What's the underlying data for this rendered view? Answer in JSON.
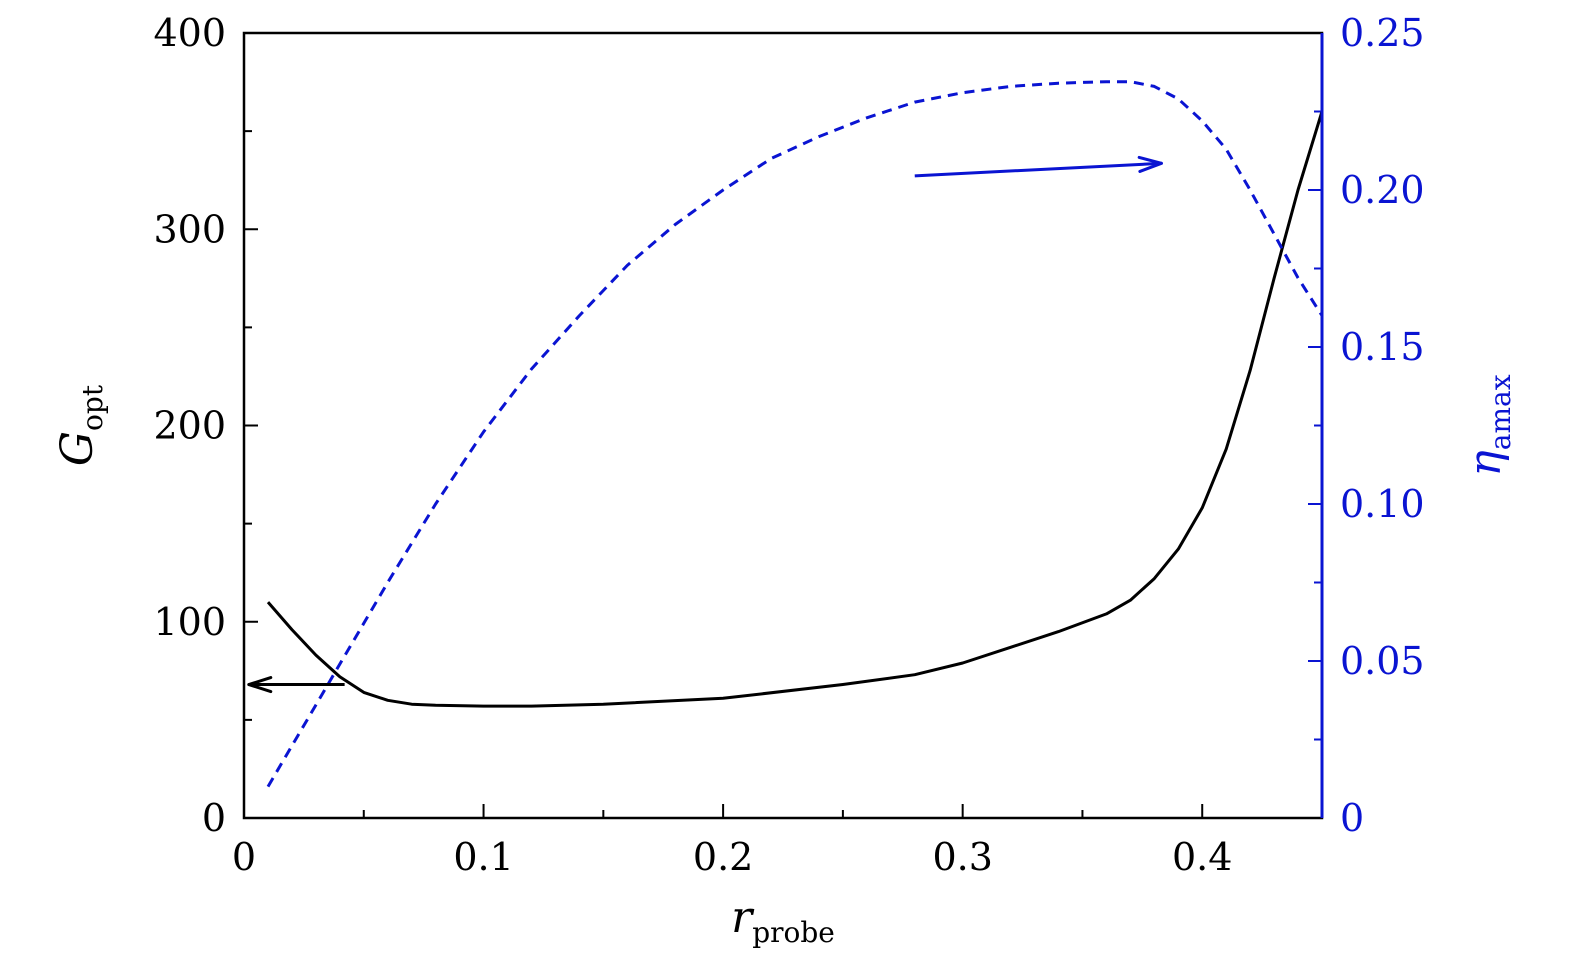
{
  "chart_data": {
    "type": "line",
    "title": "",
    "xlabel": {
      "main": "r",
      "sub": "probe"
    },
    "ylabel_left": {
      "main": "G",
      "sub": "opt"
    },
    "ylabel_right": {
      "main": "η",
      "sub": "amax"
    },
    "xlim": [
      0,
      0.45
    ],
    "ylim_left": [
      0,
      400
    ],
    "ylim_right": [
      0,
      0.25
    ],
    "x_ticks": [
      {
        "value": 0,
        "label": "0"
      },
      {
        "value": 0.1,
        "label": "0.1"
      },
      {
        "value": 0.2,
        "label": "0.2"
      },
      {
        "value": 0.3,
        "label": "0.3"
      },
      {
        "value": 0.4,
        "label": "0.4"
      }
    ],
    "y_left_ticks": [
      {
        "value": 0,
        "label": "0"
      },
      {
        "value": 100,
        "label": "100"
      },
      {
        "value": 200,
        "label": "200"
      },
      {
        "value": 300,
        "label": "300"
      },
      {
        "value": 400,
        "label": "400"
      }
    ],
    "y_right_ticks": [
      {
        "value": 0,
        "label": "0"
      },
      {
        "value": 0.05,
        "label": "0.05"
      },
      {
        "value": 0.1,
        "label": "0.10"
      },
      {
        "value": 0.15,
        "label": "0.15"
      },
      {
        "value": 0.2,
        "label": "0.20"
      },
      {
        "value": 0.25,
        "label": "0.25"
      }
    ],
    "grid": false,
    "colors": {
      "axis": "#000000",
      "left_series": "#000000",
      "right_series": "#0a14d2"
    },
    "series": [
      {
        "axis": "left",
        "style": "solid",
        "points": [
          [
            0.01,
            110
          ],
          [
            0.02,
            96
          ],
          [
            0.03,
            83
          ],
          [
            0.04,
            72
          ],
          [
            0.05,
            64
          ],
          [
            0.06,
            60
          ],
          [
            0.07,
            58
          ],
          [
            0.08,
            57.5
          ],
          [
            0.1,
            57
          ],
          [
            0.12,
            57
          ],
          [
            0.15,
            58
          ],
          [
            0.2,
            61
          ],
          [
            0.25,
            68
          ],
          [
            0.28,
            73
          ],
          [
            0.3,
            79
          ],
          [
            0.32,
            87
          ],
          [
            0.34,
            95
          ],
          [
            0.36,
            104
          ],
          [
            0.37,
            111
          ],
          [
            0.38,
            122
          ],
          [
            0.39,
            137
          ],
          [
            0.4,
            158
          ],
          [
            0.41,
            188
          ],
          [
            0.42,
            228
          ],
          [
            0.43,
            275
          ],
          [
            0.44,
            320
          ],
          [
            0.45,
            360
          ]
        ]
      },
      {
        "axis": "right",
        "style": "dashed",
        "points": [
          [
            0.01,
            0.01
          ],
          [
            0.02,
            0.023
          ],
          [
            0.03,
            0.036
          ],
          [
            0.04,
            0.049
          ],
          [
            0.05,
            0.062
          ],
          [
            0.06,
            0.075
          ],
          [
            0.08,
            0.1
          ],
          [
            0.1,
            0.123
          ],
          [
            0.12,
            0.143
          ],
          [
            0.14,
            0.16
          ],
          [
            0.16,
            0.176
          ],
          [
            0.18,
            0.189
          ],
          [
            0.2,
            0.2
          ],
          [
            0.22,
            0.21
          ],
          [
            0.24,
            0.217
          ],
          [
            0.26,
            0.223
          ],
          [
            0.28,
            0.228
          ],
          [
            0.3,
            0.231
          ],
          [
            0.32,
            0.233
          ],
          [
            0.34,
            0.234
          ],
          [
            0.36,
            0.2345
          ],
          [
            0.37,
            0.2345
          ],
          [
            0.38,
            0.233
          ],
          [
            0.39,
            0.229
          ],
          [
            0.4,
            0.222
          ],
          [
            0.41,
            0.213
          ],
          [
            0.42,
            0.2
          ],
          [
            0.43,
            0.186
          ],
          [
            0.44,
            0.172
          ],
          [
            0.45,
            0.16
          ]
        ]
      }
    ],
    "annotations": [
      {
        "type": "arrow",
        "color": "#000000",
        "from": [
          0.042,
          68
        ],
        "to": [
          0.002,
          68
        ],
        "meaning": "points to left axis"
      },
      {
        "type": "arrow",
        "color": "#0a14d2",
        "from": [
          0.28,
          0.2045
        ],
        "to": [
          0.383,
          0.2085
        ],
        "meaning": "points to right axis"
      }
    ]
  }
}
